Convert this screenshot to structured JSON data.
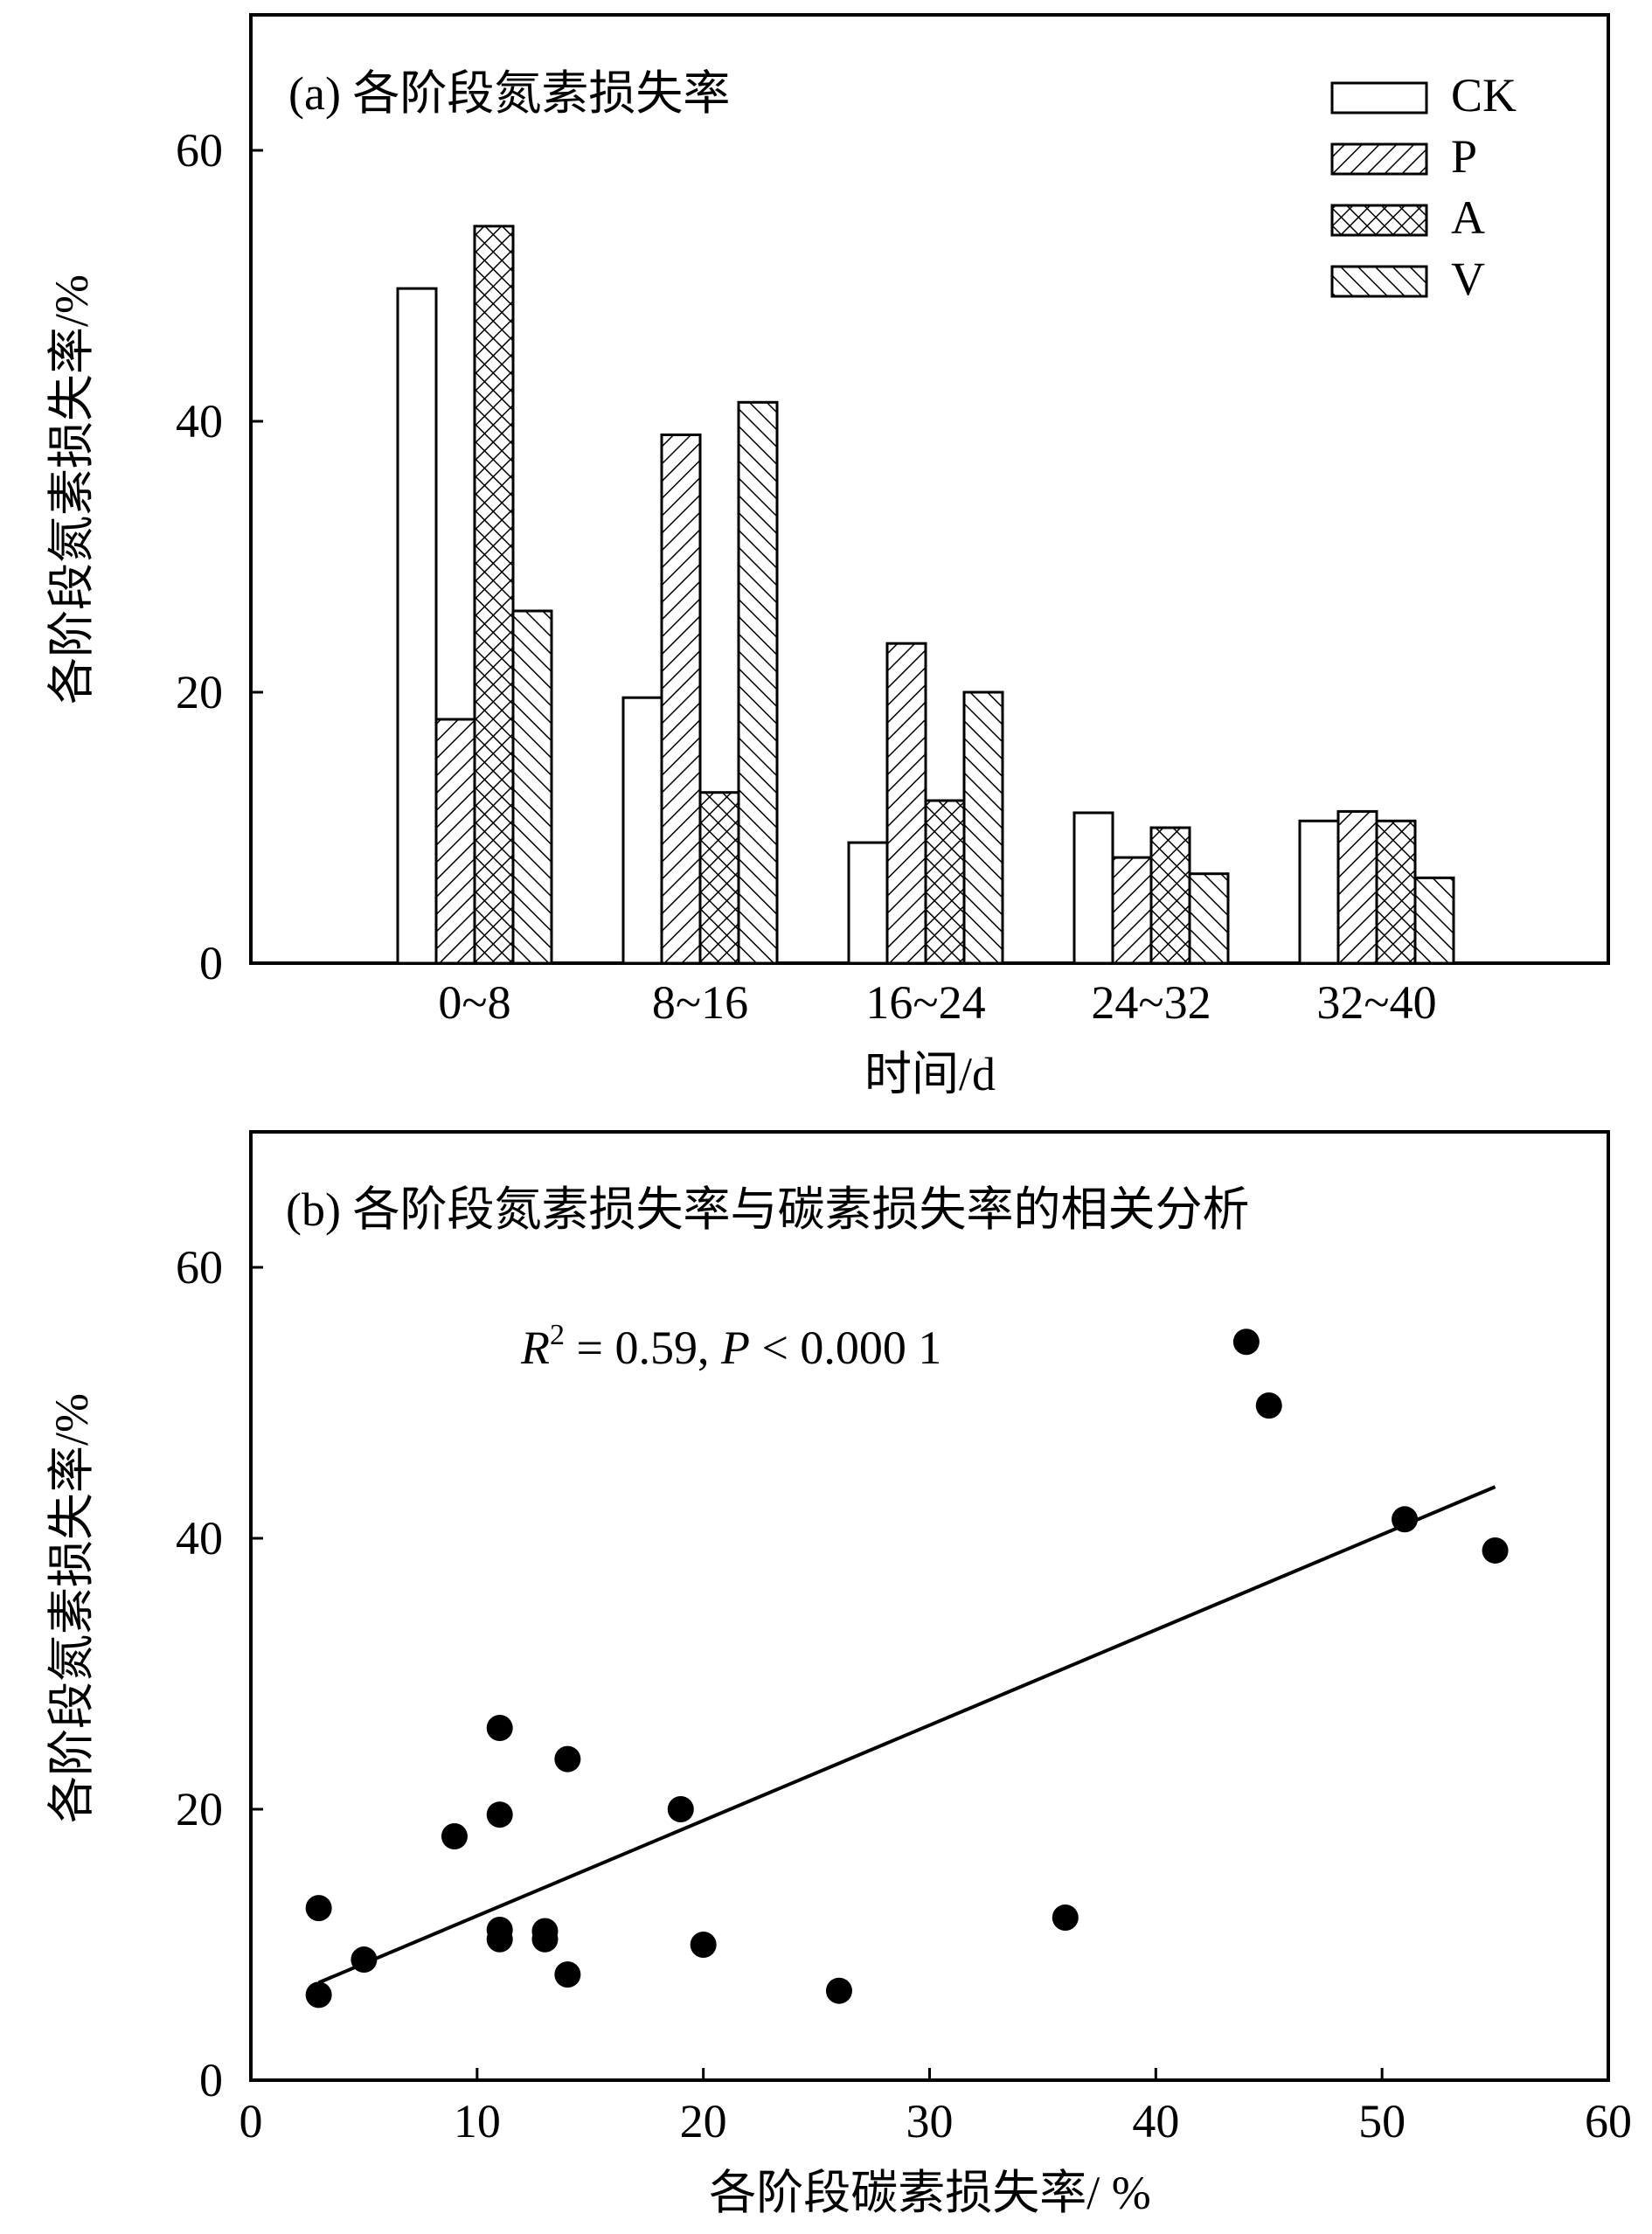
{
  "chart_data": [
    {
      "type": "bar",
      "title": "(a) 各阶段氮素损失率",
      "xlabel": "时间/d",
      "ylabel": "各阶段氮素损失率/%",
      "ylim": [
        0,
        70
      ],
      "yticks": [
        0,
        20,
        40,
        60
      ],
      "categories": [
        "0~8",
        "8~16",
        "16~24",
        "24~32",
        "32~40"
      ],
      "legend_position": "top-right",
      "grid": false,
      "series": [
        {
          "name": "CK",
          "pattern": "open",
          "values": [
            49.8,
            19.6,
            8.9,
            11.1,
            10.5
          ]
        },
        {
          "name": "P",
          "pattern": "diagonal-hatch",
          "values": [
            18.0,
            39.0,
            23.6,
            7.8,
            11.2
          ]
        },
        {
          "name": "A",
          "pattern": "cross-hatch",
          "values": [
            54.4,
            12.6,
            12.0,
            10.0,
            10.5
          ]
        },
        {
          "name": "V",
          "pattern": "back-diagonal-hatch",
          "values": [
            26.0,
            41.4,
            20.0,
            6.6,
            6.3
          ]
        }
      ]
    },
    {
      "type": "scatter",
      "title": "(b) 各阶段氮素损失率与碳素损失率的相关分析",
      "xlabel": "各阶段碳素损失率/ %",
      "ylabel": "各阶段氮素损失率/%",
      "xlim": [
        0,
        60
      ],
      "ylim": [
        0,
        70
      ],
      "xticks": [
        0,
        10,
        20,
        30,
        40,
        50,
        60
      ],
      "yticks": [
        0,
        20,
        40,
        60
      ],
      "grid": false,
      "annotation": {
        "r_label": "R",
        "r_sup": "2",
        "r_rest": " = 0.59, ",
        "p_label": "P",
        "p_rest": " < 0.000 1"
      },
      "points": [
        {
          "x": 44,
          "y": 54.5
        },
        {
          "x": 45,
          "y": 49.8
        },
        {
          "x": 51,
          "y": 41.4
        },
        {
          "x": 55,
          "y": 39.1
        },
        {
          "x": 11,
          "y": 26.0
        },
        {
          "x": 14,
          "y": 23.7
        },
        {
          "x": 11,
          "y": 19.6
        },
        {
          "x": 19,
          "y": 20.0
        },
        {
          "x": 9,
          "y": 18.0
        },
        {
          "x": 3,
          "y": 12.7
        },
        {
          "x": 36,
          "y": 12.0
        },
        {
          "x": 11,
          "y": 11.1
        },
        {
          "x": 13,
          "y": 11.0
        },
        {
          "x": 11,
          "y": 10.4
        },
        {
          "x": 13,
          "y": 10.4
        },
        {
          "x": 20,
          "y": 10.0
        },
        {
          "x": 5,
          "y": 8.9
        },
        {
          "x": 14,
          "y": 7.8
        },
        {
          "x": 26,
          "y": 6.6
        },
        {
          "x": 3,
          "y": 6.3
        }
      ],
      "trendline": {
        "x": [
          3,
          55
        ],
        "y": [
          7.2,
          43.8
        ]
      }
    }
  ]
}
